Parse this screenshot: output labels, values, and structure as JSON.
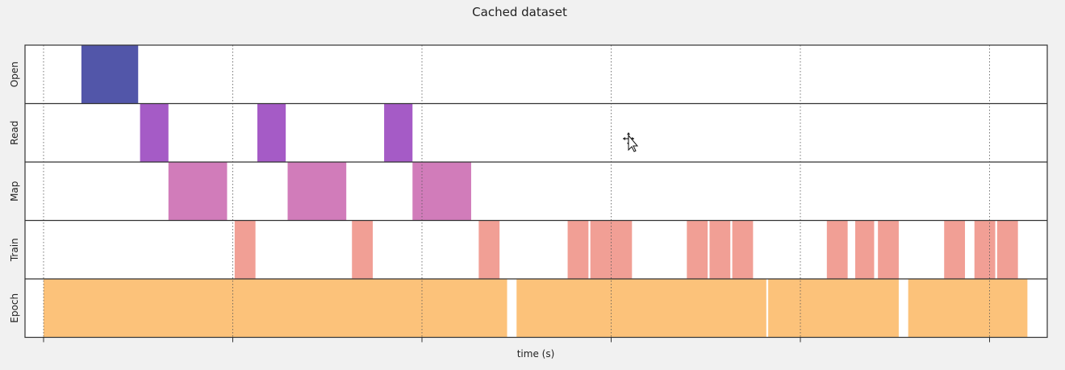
{
  "chart_data": {
    "type": "timeline",
    "title": "Cached dataset",
    "xlabel": "time (s)",
    "xlim": [
      0,
      5.3
    ],
    "xticks": [
      0,
      1,
      2,
      3,
      4,
      5
    ],
    "grid": true,
    "rows": [
      {
        "name": "Open",
        "color": "#3f44a0",
        "intervals": [
          [
            0.2,
            0.5
          ]
        ]
      },
      {
        "name": "Read",
        "color": "#9b49c0",
        "intervals": [
          [
            0.51,
            0.66
          ],
          [
            1.13,
            1.28
          ],
          [
            1.8,
            1.95
          ]
        ]
      },
      {
        "name": "Map",
        "color": "#cc6eb3",
        "intervals": [
          [
            0.66,
            0.97
          ],
          [
            1.29,
            1.6
          ],
          [
            1.95,
            2.26
          ]
        ]
      },
      {
        "name": "Train",
        "color": "#f0958a",
        "intervals": [
          [
            1.01,
            1.12
          ],
          [
            1.63,
            1.74
          ],
          [
            2.3,
            2.41
          ],
          [
            2.77,
            2.88
          ],
          [
            2.89,
            3.0
          ],
          [
            3.0,
            3.11
          ],
          [
            3.4,
            3.51
          ],
          [
            3.52,
            3.63
          ],
          [
            3.64,
            3.75
          ],
          [
            4.14,
            4.25
          ],
          [
            4.29,
            4.39
          ],
          [
            4.41,
            4.52
          ],
          [
            4.76,
            4.87
          ],
          [
            4.92,
            5.03
          ],
          [
            5.04,
            5.15
          ]
        ]
      },
      {
        "name": "Epoch",
        "color": "#fcbb6c",
        "intervals": [
          [
            0.0,
            2.45
          ],
          [
            2.5,
            3.82
          ],
          [
            3.83,
            4.52
          ],
          [
            4.57,
            5.2
          ]
        ]
      }
    ]
  },
  "cursor": {
    "icon": "move-cursor-icon"
  }
}
